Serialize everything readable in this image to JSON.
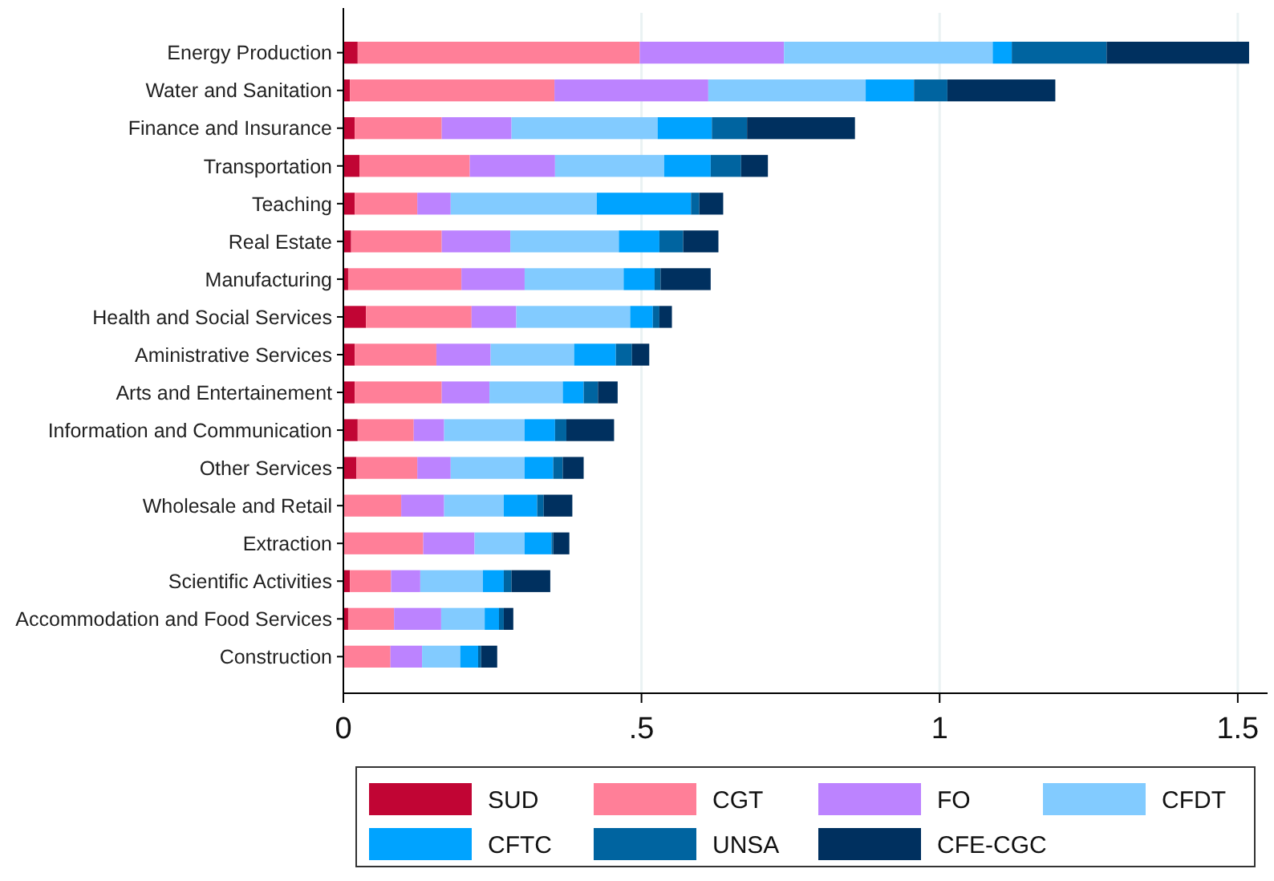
{
  "chart_data": {
    "type": "bar",
    "orientation": "horizontal",
    "stacked": true,
    "categories": [
      "Energy Production",
      "Water and Sanitation",
      "Finance and Insurance",
      "Transportation",
      "Teaching",
      "Real Estate",
      "Manufacturing",
      "Health and Social Services",
      "Aministrative Services",
      "Arts and Entertainement",
      "Information and Communication",
      "Other Services",
      "Wholesale and Retail",
      "Extraction",
      "Scientific Activities",
      "Accommodation and Food Services",
      "Construction"
    ],
    "series": [
      {
        "name": "SUD",
        "color": "#c10534",
        "values": [
          0.024,
          0.011,
          0.019,
          0.027,
          0.019,
          0.013,
          0.008,
          0.038,
          0.019,
          0.019,
          0.024,
          0.022,
          0,
          0,
          0.011,
          0.008,
          0
        ]
      },
      {
        "name": "CGT",
        "color": "#ff7f98",
        "values": [
          0.473,
          0.343,
          0.146,
          0.185,
          0.105,
          0.152,
          0.19,
          0.177,
          0.137,
          0.146,
          0.094,
          0.102,
          0.097,
          0.134,
          0.069,
          0.077,
          0.079
        ]
      },
      {
        "name": "FO",
        "color": "#bc83ff",
        "values": [
          0.242,
          0.258,
          0.117,
          0.143,
          0.056,
          0.115,
          0.106,
          0.075,
          0.091,
          0.08,
          0.051,
          0.056,
          0.072,
          0.086,
          0.049,
          0.079,
          0.053
        ]
      },
      {
        "name": "CFDT",
        "color": "#82cbff",
        "values": [
          0.35,
          0.264,
          0.245,
          0.183,
          0.245,
          0.182,
          0.166,
          0.191,
          0.14,
          0.123,
          0.135,
          0.124,
          0.1,
          0.084,
          0.105,
          0.073,
          0.064
        ]
      },
      {
        "name": "CFTC",
        "color": "#00a3ff",
        "values": [
          0.032,
          0.081,
          0.091,
          0.078,
          0.158,
          0.068,
          0.052,
          0.038,
          0.07,
          0.035,
          0.051,
          0.048,
          0.056,
          0.045,
          0.035,
          0.024,
          0.03
        ]
      },
      {
        "name": "UNSA",
        "color": "#0064a0",
        "values": [
          0.159,
          0.056,
          0.059,
          0.051,
          0.014,
          0.04,
          0.01,
          0.011,
          0.027,
          0.024,
          0.019,
          0.016,
          0.011,
          0.003,
          0.013,
          0.008,
          0.005
        ]
      },
      {
        "name": "CFE-CGC",
        "color": "#00305f",
        "values": [
          0.239,
          0.181,
          0.181,
          0.045,
          0.04,
          0.059,
          0.084,
          0.021,
          0.029,
          0.033,
          0.08,
          0.035,
          0.048,
          0.027,
          0.065,
          0.016,
          0.027
        ]
      }
    ],
    "xlim": [
      0,
      1.55
    ],
    "xticks": [
      0,
      {
        "value": 0.5,
        "label": ".5"
      },
      1,
      1.5
    ],
    "grid": "x",
    "legend": "bottom"
  }
}
